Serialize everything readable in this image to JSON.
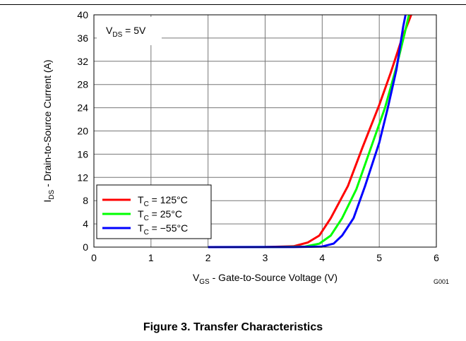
{
  "figure_caption": "Figure 3. Transfer Characteristics",
  "figure_id": "G001",
  "chart_data": {
    "type": "line",
    "title": "",
    "xlabel_main": "V",
    "xlabel_sub": "GS",
    "xlabel_rest": " - Gate-to-Source Voltage (V)",
    "ylabel_main": "I",
    "ylabel_sub": "DS",
    "ylabel_rest": " - Drain-to-Source Current  (A)",
    "xlim": [
      0,
      6
    ],
    "ylim": [
      0,
      40
    ],
    "xticks": [
      0,
      1,
      2,
      3,
      4,
      5,
      6
    ],
    "yticks": [
      0,
      4,
      8,
      12,
      16,
      20,
      24,
      28,
      32,
      36,
      40
    ],
    "grid": true,
    "annotation": {
      "main": "V",
      "sub": "DS",
      "rest": " = 5V"
    },
    "legend_position": "bottom-left",
    "series": [
      {
        "name": "T = 125°C",
        "name_main": "T",
        "name_sub": "C",
        "name_rest": " = 125°C",
        "color": "#ff0000",
        "points": [
          [
            2.0,
            0
          ],
          [
            3.0,
            0.01
          ],
          [
            3.5,
            0.15
          ],
          [
            3.75,
            0.8
          ],
          [
            3.95,
            2.0
          ],
          [
            4.15,
            5.0
          ],
          [
            4.45,
            10.5
          ],
          [
            4.7,
            17.0
          ],
          [
            5.0,
            24.5
          ],
          [
            5.2,
            30.0
          ],
          [
            5.4,
            36.0
          ],
          [
            5.56,
            40.0
          ]
        ]
      },
      {
        "name": "T = 25°C",
        "name_main": "T",
        "name_sub": "C",
        "name_rest": " = 25°C",
        "color": "#00ff00",
        "points": [
          [
            2.0,
            0
          ],
          [
            3.2,
            0.01
          ],
          [
            3.7,
            0.1
          ],
          [
            3.95,
            0.6
          ],
          [
            4.15,
            2.0
          ],
          [
            4.35,
            5.0
          ],
          [
            4.6,
            10.0
          ],
          [
            4.85,
            17.0
          ],
          [
            5.1,
            24.0
          ],
          [
            5.3,
            31.0
          ],
          [
            5.45,
            37.0
          ],
          [
            5.52,
            40.0
          ]
        ]
      },
      {
        "name": "T = −55°C",
        "name_main": "T",
        "name_sub": "C",
        "name_rest": " = −55°C",
        "color": "#0000ff",
        "points": [
          [
            2.0,
            0
          ],
          [
            3.5,
            0.01
          ],
          [
            4.0,
            0.1
          ],
          [
            4.2,
            0.6
          ],
          [
            4.35,
            2.0
          ],
          [
            4.55,
            5.0
          ],
          [
            4.75,
            10.5
          ],
          [
            5.0,
            18.0
          ],
          [
            5.15,
            24.0
          ],
          [
            5.3,
            30.5
          ],
          [
            5.42,
            38.0
          ],
          [
            5.46,
            40.0
          ]
        ]
      }
    ]
  }
}
